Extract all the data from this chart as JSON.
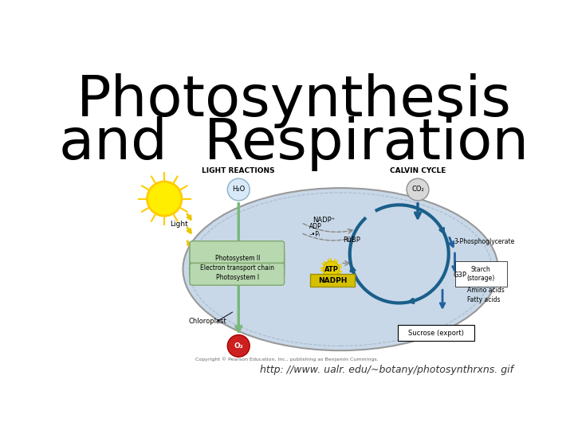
{
  "title_line1": "Photosynthesis",
  "title_line2": "and  Respiration",
  "title_fontsize": 52,
  "title_color": "#000000",
  "title_font_weight": "normal",
  "background_color": "#ffffff",
  "url_text": "http: //www. ualr. edu/~botany/photosynthrxns. gif",
  "url_fontsize": 9,
  "url_color": "#333333",
  "chloroplast_fill": "#c8d8e8",
  "chloroplast_edge": "#999999",
  "light_reactions_label": "LIGHT REACTIONS",
  "calvin_cycle_label": "CALVIN CYCLE",
  "h2o_label": "H₂O",
  "co2_label": "CO₂",
  "o2_label": "O₂",
  "nadph_label": "NADPH",
  "atp_label": "ATP",
  "nadp_label": "NADP⁺",
  "adp_label": "ADP\n-•Pᵢ",
  "rubp_label": "RuBP",
  "phosphoglycerate_label": "3-Phosphoglycerate",
  "g3p_label": "G3P",
  "starch_label": "Starch\n(storage)",
  "amino_label": "Amino acids\nFatty acids",
  "sucrose_label": "Sucrose (export)",
  "chloroplast_label": "Chloroplast",
  "light_label": "Light",
  "photosystem_label": "Photosystem II\nElectron transport chain\nPhotosystem I",
  "copyright_text": "Copyright © Pearson Education, Inc., publishing as Benjamin Cummings.",
  "green_arrow": "#7ab87a",
  "blue_arrow": "#2060a0",
  "yellow_bold": "#e8c800",
  "sun_color": "#ffee00",
  "atp_bg": "#e8d000",
  "nadph_bg": "#d4c000",
  "o2_bg": "#cc2020",
  "calvin_arrow": "#1a5f8a",
  "thylakoid_fill": "#b8d8b0",
  "thylakoid_edge": "#80a870"
}
